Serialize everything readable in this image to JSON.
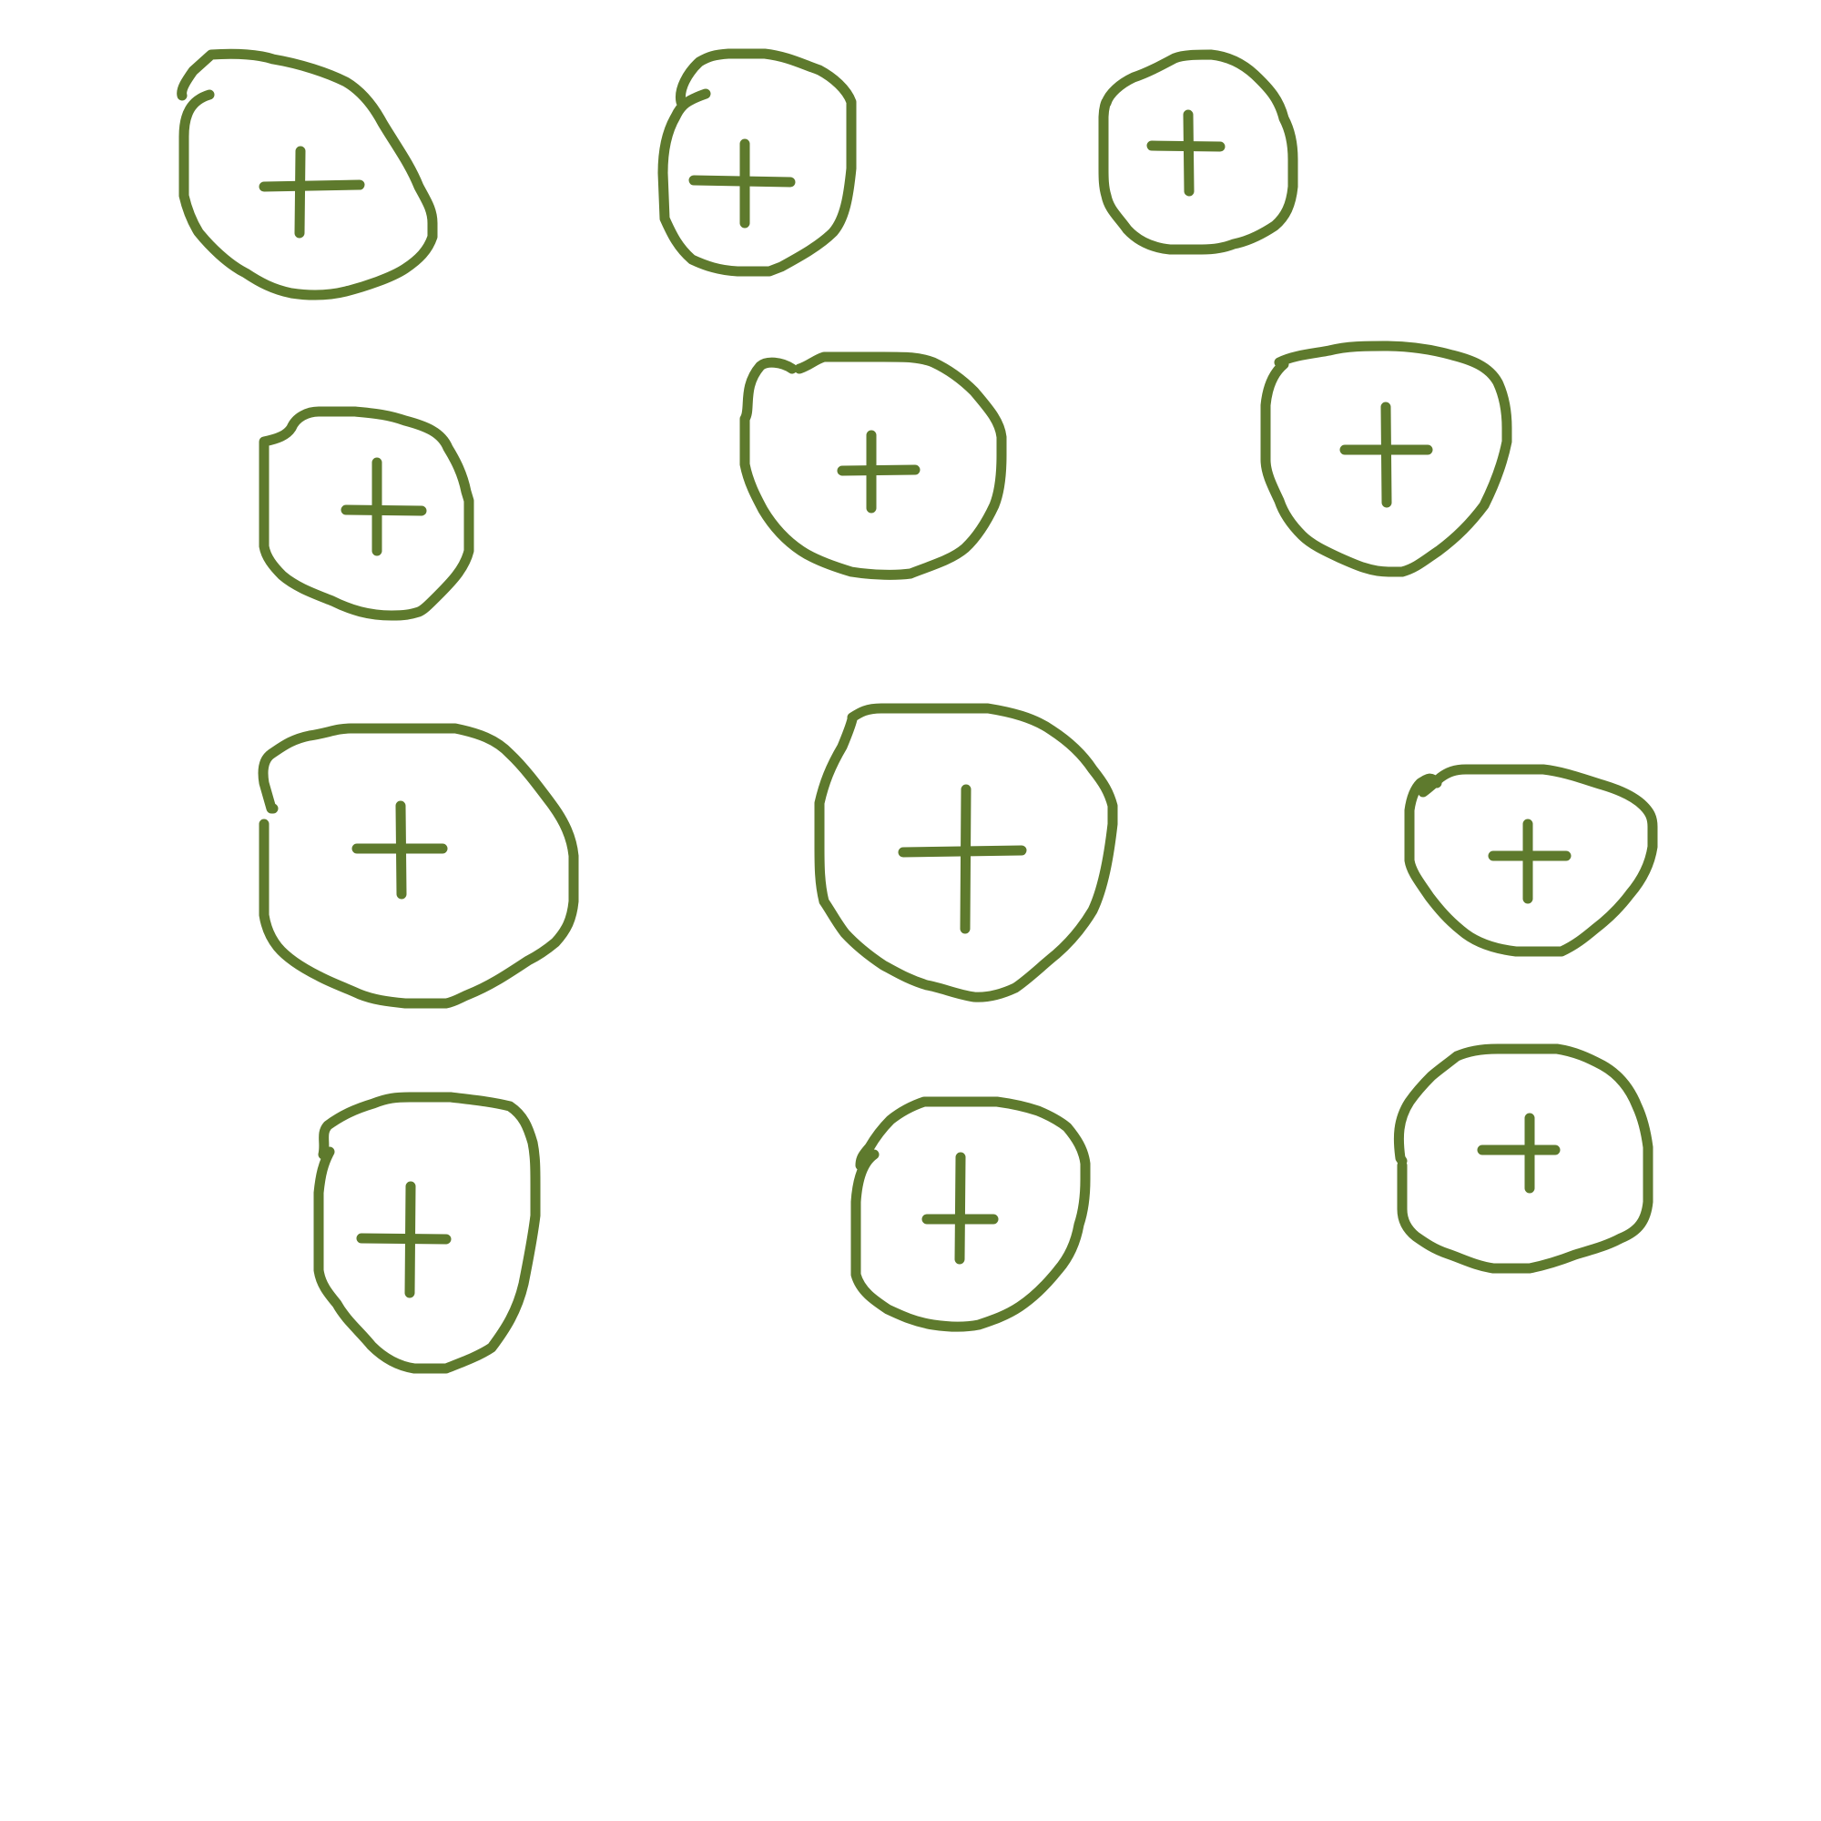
{
  "canvas": {
    "background_color": "#ffffff",
    "stroke_color": "#5e7a2d"
  },
  "drawing": {
    "shape_count": 12,
    "shape_icon": "circled-plus-icon",
    "rows": [
      {
        "label": "row-1",
        "shapes": 3
      },
      {
        "label": "row-2",
        "shapes": 3
      },
      {
        "label": "row-3",
        "shapes": 3
      },
      {
        "label": "row-4",
        "shapes": 3
      }
    ]
  }
}
